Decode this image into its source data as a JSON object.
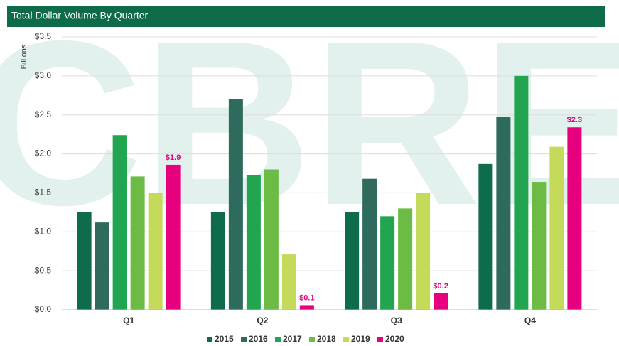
{
  "chart_data": {
    "type": "bar",
    "title": "Total Dollar Volume By Quarter",
    "watermark": "CBRE",
    "y_label": "Billions",
    "categories": [
      "Q1",
      "Q2",
      "Q3",
      "Q4"
    ],
    "series": [
      {
        "name": "2015",
        "color": "#0e6b4b",
        "values": [
          1.25,
          1.25,
          1.25,
          1.87
        ]
      },
      {
        "name": "2016",
        "color": "#2f6b5c",
        "values": [
          1.12,
          2.7,
          1.68,
          2.47
        ]
      },
      {
        "name": "2017",
        "color": "#22a550",
        "values": [
          2.24,
          1.73,
          1.2,
          3.0
        ]
      },
      {
        "name": "2018",
        "color": "#6cbb45",
        "values": [
          1.71,
          1.8,
          1.3,
          1.64
        ]
      },
      {
        "name": "2019",
        "color": "#c3da5a",
        "values": [
          1.5,
          0.71,
          1.5,
          2.09
        ]
      },
      {
        "name": "2020",
        "color": "#e6007e",
        "values": [
          1.86,
          0.06,
          0.21,
          2.34
        ],
        "value_labels": [
          "$1.9",
          "$0.1",
          "$0.2",
          "$2.3"
        ]
      }
    ],
    "ylim": [
      0,
      3.5
    ],
    "yticks": [
      {
        "value": 0,
        "label": "$0.0"
      },
      {
        "value": 0.5,
        "label": "$0.5"
      },
      {
        "value": 1,
        "label": "$1.0"
      },
      {
        "value": 1.5,
        "label": "$1.5"
      },
      {
        "value": 2,
        "label": "$2.0"
      },
      {
        "value": 2.5,
        "label": "$2.5"
      },
      {
        "value": 3,
        "label": "$3.0"
      },
      {
        "value": 3.5,
        "label": "$3.5"
      }
    ],
    "grid": true,
    "legend": "bottom"
  }
}
